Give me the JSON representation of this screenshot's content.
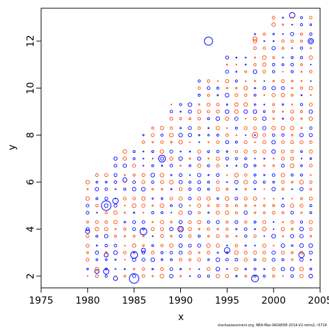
{
  "chart_data": {
    "type": "scatter",
    "title": "",
    "xlabel": "x",
    "ylabel": "y",
    "xlim": [
      1975,
      2005
    ],
    "ylim": [
      1.5,
      13.4
    ],
    "x_ticks": [
      1975,
      1980,
      1985,
      1990,
      1995,
      2000,
      2005
    ],
    "x_tick_labels": [
      "1975",
      "1980",
      "1985",
      "1990",
      "1995",
      "2000",
      "2005"
    ],
    "y_ticks": [
      2,
      4,
      6,
      8,
      10,
      12
    ],
    "y_tick_labels": [
      "2",
      "4",
      "6",
      "8",
      "10",
      "12"
    ],
    "grid": false,
    "legend": "none",
    "marker": "open-circle",
    "size_encoding": "residual magnitude",
    "colors": {
      "positive": "#0000ff",
      "negative": "#ff4500"
    },
    "bubble_points": [
      {
        "x": 1980,
        "y": 3.9,
        "r": 3.0,
        "color": "#0000ff"
      },
      {
        "x": 1981,
        "y": 2.2,
        "r": 3.0,
        "color": "#0000ff"
      },
      {
        "x": 1982,
        "y": 5.0,
        "r": 7.0,
        "color": "#0000ff"
      },
      {
        "x": 1982,
        "y": 2.2,
        "r": 4.0,
        "color": "#0000ff"
      },
      {
        "x": 1982,
        "y": 2.9,
        "r": 3.0,
        "color": "#0000ff"
      },
      {
        "x": 1983,
        "y": 5.2,
        "r": 4.0,
        "color": "#0000ff"
      },
      {
        "x": 1983,
        "y": 1.9,
        "r": 3.0,
        "color": "#0000ff"
      },
      {
        "x": 1984,
        "y": 6.1,
        "r": 3.0,
        "color": "#0000ff"
      },
      {
        "x": 1985,
        "y": 1.9,
        "r": 7.0,
        "color": "#0000ff"
      },
      {
        "x": 1985,
        "y": 2.9,
        "r": 5.0,
        "color": "#0000ff"
      },
      {
        "x": 1986,
        "y": 3.9,
        "r": 5.0,
        "color": "#0000ff"
      },
      {
        "x": 1986,
        "y": 3.1,
        "r": 3.0,
        "color": "#0000ff"
      },
      {
        "x": 1988,
        "y": 7.0,
        "r": 5.0,
        "color": "#0000ff"
      },
      {
        "x": 1993,
        "y": 12.0,
        "r": 6.0,
        "color": "#0000ff"
      },
      {
        "x": 1998,
        "y": 1.9,
        "r": 5.0,
        "color": "#0000ff"
      },
      {
        "x": 2002,
        "y": 13.1,
        "r": 4.0,
        "color": "#0000ff"
      },
      {
        "x": 2004,
        "y": 12.0,
        "r": 4.0,
        "color": "#0000ff"
      },
      {
        "x": 2003,
        "y": 2.9,
        "r": 4.0,
        "color": "#0000ff"
      },
      {
        "x": 1998,
        "y": 8.0,
        "r": 4.0,
        "color": "#ff4500"
      },
      {
        "x": 1998,
        "y": 12.1,
        "r": 3.0,
        "color": "#ff4500"
      },
      {
        "x": 1990,
        "y": 4.0,
        "r": 4.0,
        "color": "#0000ff"
      },
      {
        "x": 1995,
        "y": 3.1,
        "r": 4.0,
        "color": "#0000ff"
      }
    ]
  },
  "credit": "stockassessment.org, NEA-Mac-WGWIDE-2014-V2-retro2, r3714"
}
